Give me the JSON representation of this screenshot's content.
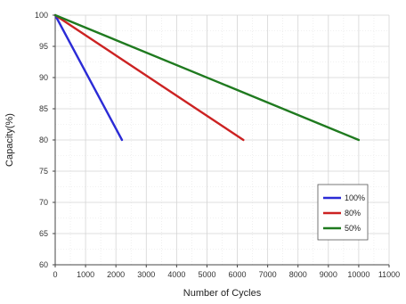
{
  "chart_data": {
    "type": "line",
    "title": "",
    "xlabel": "Number of Cycles",
    "ylabel": "Capacity(%)",
    "xlim": [
      0,
      11000
    ],
    "ylim": [
      60,
      100
    ],
    "xticks": [
      0,
      1000,
      2000,
      3000,
      4000,
      5000,
      6000,
      7000,
      8000,
      9000,
      10000,
      11000
    ],
    "yticks": [
      60,
      65,
      70,
      75,
      80,
      85,
      90,
      95,
      100
    ],
    "grid": true,
    "legend_position": "bottom-right",
    "series": [
      {
        "name": "100%",
        "color": "#2b2bd6",
        "x": [
          0,
          2200
        ],
        "y": [
          100,
          80
        ]
      },
      {
        "name": "80%",
        "color": "#cc2222",
        "x": [
          0,
          6200
        ],
        "y": [
          100,
          80
        ]
      },
      {
        "name": "50%",
        "color": "#1f7a1f",
        "x": [
          0,
          10000
        ],
        "y": [
          100,
          80
        ]
      }
    ]
  }
}
